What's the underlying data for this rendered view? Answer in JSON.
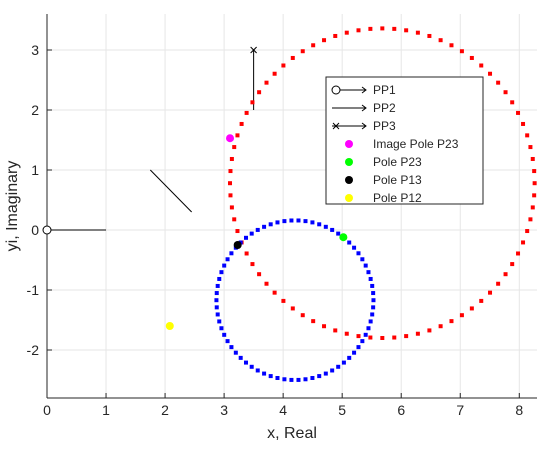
{
  "chart_data": {
    "type": "scatter",
    "xlabel": "x, Real",
    "ylabel": "yi, Imaginary",
    "xlim": [
      0,
      8.3
    ],
    "ylim": [
      -2.8,
      3.6
    ],
    "xticks": [
      "0",
      "1",
      "2",
      "3",
      "4",
      "5",
      "6",
      "7",
      "8"
    ],
    "yticks": [
      "-2",
      "-1",
      "0",
      "1",
      "2",
      "3"
    ],
    "grid": true,
    "legend_position": "top-right",
    "legend": [
      {
        "label": "PP1",
        "type": "line-marker",
        "marker": "circle"
      },
      {
        "label": "PP2",
        "type": "line",
        "marker": "none"
      },
      {
        "label": "PP3",
        "type": "line-marker",
        "marker": "cross"
      },
      {
        "label": "Image Pole P23",
        "type": "point",
        "color": "#ff00ff"
      },
      {
        "label": "Pole P23",
        "type": "point",
        "color": "#00ff00"
      },
      {
        "label": "Pole P13",
        "type": "point",
        "color": "#000000"
      },
      {
        "label": "Pole P12",
        "type": "point",
        "color": "#ffff00"
      }
    ],
    "series": [
      {
        "name": "PP1",
        "type": "line",
        "color": "#000000",
        "points": [
          [
            0,
            0
          ],
          [
            1.0,
            0
          ]
        ],
        "start_marker": "circle"
      },
      {
        "name": "PP2",
        "type": "line",
        "color": "#000000",
        "points": [
          [
            1.75,
            1.0
          ],
          [
            2.45,
            0.3
          ]
        ]
      },
      {
        "name": "PP3",
        "type": "line",
        "color": "#000000",
        "points": [
          [
            3.5,
            3.0
          ],
          [
            3.5,
            2.0
          ]
        ],
        "start_marker": "cross"
      },
      {
        "name": "red locus",
        "type": "circle-points",
        "color": "#ff0000",
        "center": [
          5.68,
          0.78
        ],
        "radius": 2.58,
        "count": 80
      },
      {
        "name": "blue locus",
        "type": "circle-points",
        "color": "#0000ff",
        "center": [
          4.2,
          -1.17
        ],
        "radius": 1.33,
        "count": 70
      },
      {
        "name": "Image Pole P23",
        "type": "point",
        "color": "#ff00ff",
        "points": [
          [
            3.1,
            1.53
          ]
        ]
      },
      {
        "name": "Pole P23",
        "type": "point",
        "color": "#00ff00",
        "points": [
          [
            5.02,
            -0.12
          ]
        ]
      },
      {
        "name": "Pole P13",
        "type": "point",
        "color": "#000000",
        "points": [
          [
            3.23,
            -0.25
          ]
        ]
      },
      {
        "name": "Pole P12",
        "type": "point",
        "color": "#ffff00",
        "points": [
          [
            2.08,
            -1.6
          ]
        ]
      }
    ]
  }
}
